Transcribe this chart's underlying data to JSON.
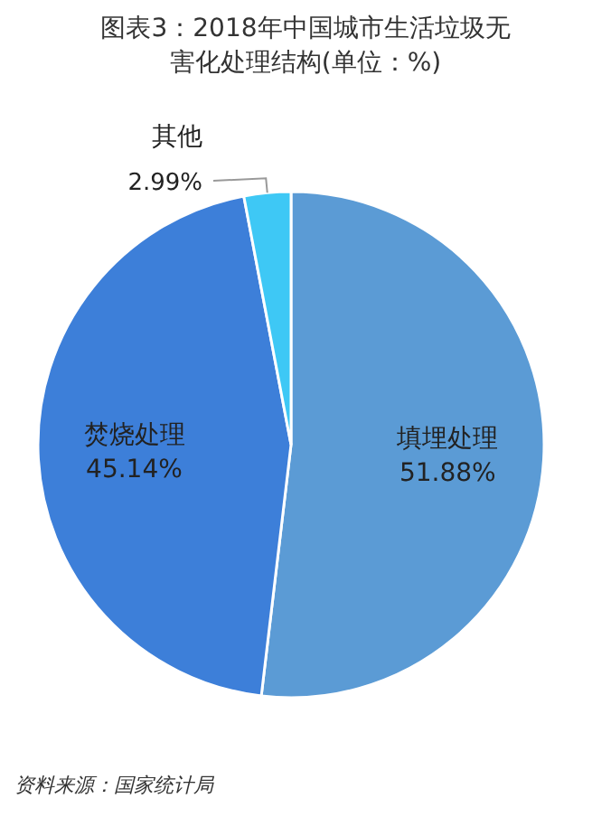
{
  "chart_data": {
    "type": "pie",
    "title": "图表3：2018年中国城市生活垃圾无害化处理结构(单位：%)",
    "categories": [
      "填埋处理",
      "焚烧处理",
      "其他"
    ],
    "values": [
      51.88,
      45.14,
      2.99
    ],
    "value_labels": [
      "51.88%",
      "45.14%",
      "2.99%"
    ],
    "colors": [
      "#5b9bd5",
      "#3d7fd9",
      "#3ec8f5"
    ],
    "annotations": [
      "资料来源：国家统计局"
    ]
  }
}
